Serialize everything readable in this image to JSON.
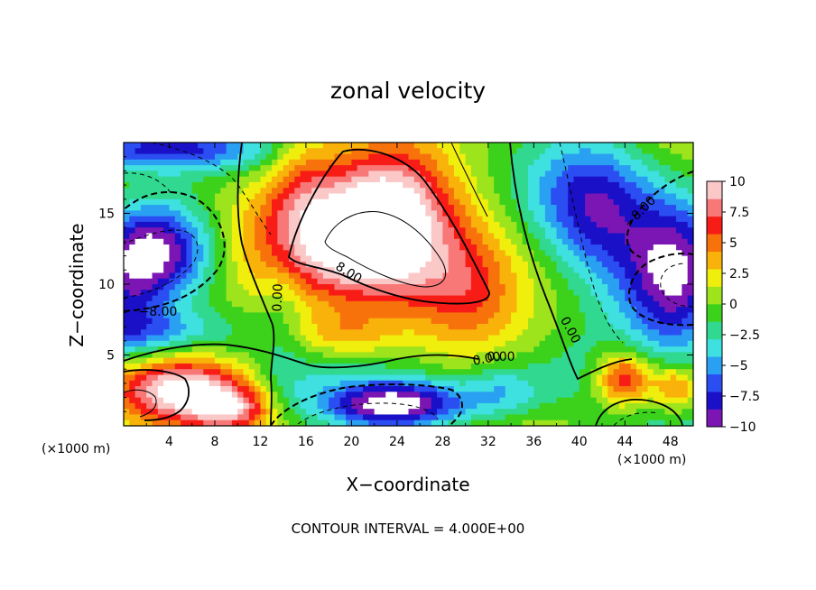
{
  "chart_data": {
    "type": "heatmap",
    "title": "zonal velocity",
    "xlabel": "X−coordinate",
    "ylabel": "Z−coordinate",
    "x_unit": "(×1000 m)",
    "xlim": [
      0,
      50
    ],
    "ylim": [
      0,
      20
    ],
    "x_ticks": [
      4,
      8,
      12,
      16,
      20,
      24,
      28,
      32,
      36,
      40,
      44,
      48
    ],
    "y_ticks": [
      5,
      10,
      15
    ],
    "colorbar": {
      "ticks": [
        10,
        7.5,
        5,
        2.5,
        0,
        -2.5,
        -5,
        -7.5,
        -10
      ],
      "tick_labels": [
        "10",
        "7.5",
        "5",
        "2.5",
        "0",
        "−2.5",
        "−5",
        "−7.5",
        "−10"
      ],
      "range": [
        -10,
        10
      ],
      "colors": [
        "#7b16b4",
        "#1a10c8",
        "#2a4ef2",
        "#2aa0f2",
        "#3ee0e0",
        "#30d890",
        "#3cd21c",
        "#9ee41c",
        "#f0ee0c",
        "#f8b20a",
        "#f8720c",
        "#f81c16",
        "#f87878",
        "#fbc8c8"
      ]
    },
    "contour_labels": [
      "0.00",
      "8.00",
      "−8.00",
      "0.00",
      "−8.00",
      "0.00",
      "0.00"
    ],
    "contour_interval_text": "CONTOUR INTERVAL = 4.000E+00",
    "blobs": [
      {
        "x": 19,
        "z": 13.6,
        "rx": 9.5,
        "rz": 5.5,
        "v": 8.5
      },
      {
        "x": 22,
        "z": 12.5,
        "rx": 5.5,
        "rz": 3.4,
        "v": 4.5
      },
      {
        "x": 23.5,
        "z": 16.5,
        "rx": 5,
        "rz": 3.5,
        "v": 5
      },
      {
        "x": 19,
        "z": 6.4,
        "rx": 5,
        "rz": 1.7,
        "v": 4
      },
      {
        "x": 5,
        "z": 2.6,
        "rx": 6,
        "rz": 2.1,
        "v": 10
      },
      {
        "x": 9.5,
        "z": 1.2,
        "rx": 3.5,
        "rz": 1.4,
        "v": 6
      },
      {
        "x": 44,
        "z": 3.3,
        "rx": 2.5,
        "rz": 2,
        "v": 9
      },
      {
        "x": 48.5,
        "z": 2.7,
        "rx": 2.2,
        "rz": 1.8,
        "v": 7
      },
      {
        "x": 15.5,
        "z": 17,
        "rx": 3,
        "rz": 5,
        "v": 3
      },
      {
        "x": 30,
        "z": 9,
        "rx": 4,
        "rz": 4,
        "v": 3
      },
      {
        "x": 3.5,
        "z": 12.5,
        "rx": 5,
        "rz": 3.5,
        "v": -11
      },
      {
        "x": 0,
        "z": 10.5,
        "rx": 4,
        "rz": 5,
        "v": -6
      },
      {
        "x": 2.5,
        "z": 6.7,
        "rx": 7,
        "rz": 1.6,
        "v": -4
      },
      {
        "x": 3,
        "z": 19.5,
        "rx": 9,
        "rz": 1.5,
        "v": -7
      },
      {
        "x": 48.5,
        "z": 10.5,
        "rx": 4.5,
        "rz": 5,
        "v": -11
      },
      {
        "x": 42,
        "z": 14,
        "rx": 4.5,
        "rz": 6,
        "v": -4
      },
      {
        "x": 40,
        "z": 16,
        "rx": 5,
        "rz": 4,
        "v": -3
      },
      {
        "x": 24,
        "z": 1.5,
        "rx": 6.5,
        "rz": 1.7,
        "v": -11
      },
      {
        "x": 33.5,
        "z": 2.5,
        "rx": 3.5,
        "rz": 2,
        "v": -4
      },
      {
        "x": 14,
        "z": 9.5,
        "rx": 2,
        "rz": 3.5,
        "v": -1.5
      },
      {
        "x": 39,
        "z": 4,
        "rx": 3,
        "rz": 2.5,
        "v": -1
      },
      {
        "x": 14,
        "z": 3,
        "rx": 3,
        "rz": 3,
        "v": -2
      }
    ]
  }
}
